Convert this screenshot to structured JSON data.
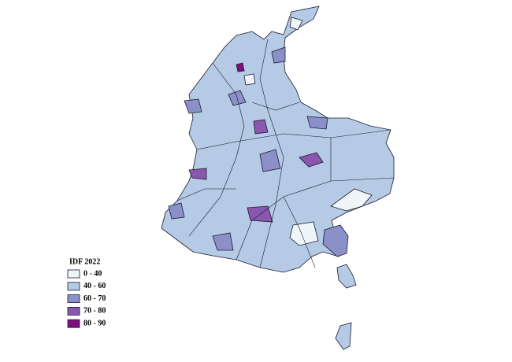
{
  "legend": {
    "title": "IDF 2022",
    "items": [
      {
        "label": "0 - 40",
        "color": "#eef6f9"
      },
      {
        "label": "40 - 60",
        "color": "#b5cae4"
      },
      {
        "label": "60 - 70",
        "color": "#8b90c9"
      },
      {
        "label": "70 - 80",
        "color": "#8957ad"
      },
      {
        "label": "80 - 90",
        "color": "#7b107f"
      }
    ]
  }
}
